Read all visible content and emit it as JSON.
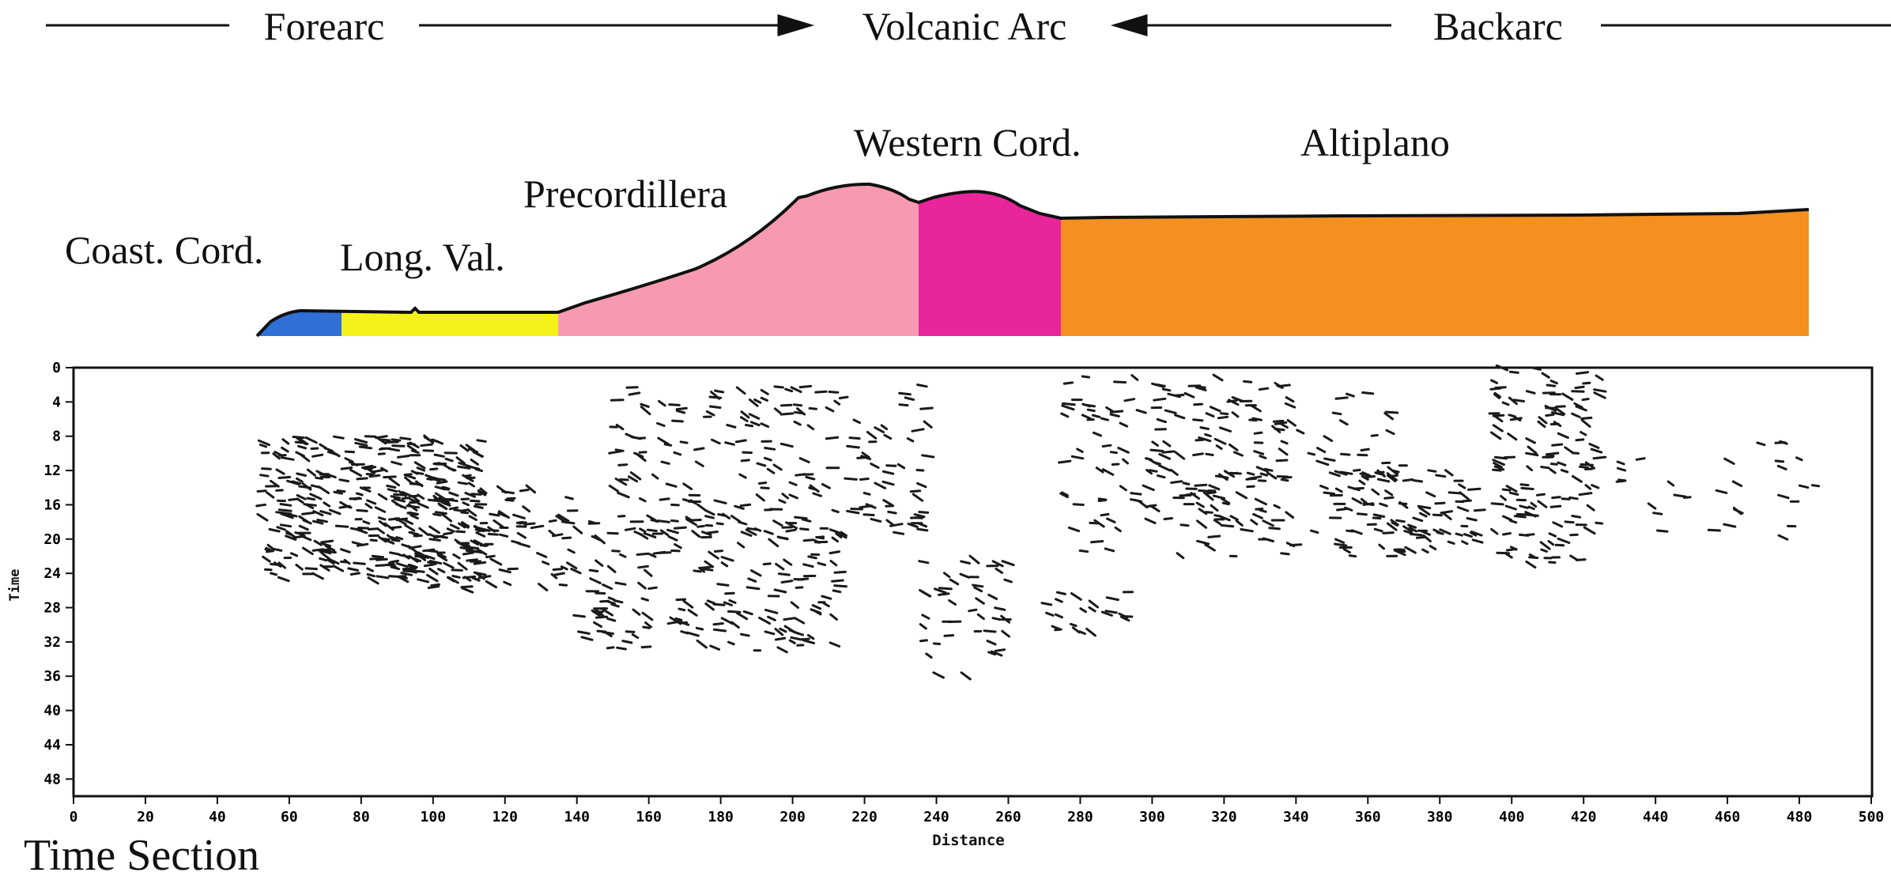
{
  "header": {
    "forearc": "Forearc",
    "volcanic_arc": "Volcanic Arc",
    "backarc": "Backarc"
  },
  "regions": [
    {
      "key": "coast",
      "label": "Coast. Cord.",
      "color": "#2f6fd6"
    },
    {
      "key": "longval",
      "label": "Long. Val.",
      "color": "#f5f21a"
    },
    {
      "key": "precord",
      "label": "Precordillera",
      "color": "#f79ab0"
    },
    {
      "key": "western",
      "label": "Western Cord.",
      "color": "#e8259a"
    },
    {
      "key": "altiplano",
      "label": "Altiplano",
      "color": "#f39020"
    }
  ],
  "section_title": "Time Section",
  "axes": {
    "xlabel": "Distance",
    "ylabel": "Time",
    "x_ticks": [
      "0",
      "20",
      "40",
      "60",
      "80",
      "100",
      "120",
      "140",
      "160",
      "180",
      "200",
      "220",
      "240",
      "260",
      "280",
      "300",
      "320",
      "340",
      "360",
      "380",
      "400",
      "420",
      "440",
      "460",
      "480",
      "500"
    ],
    "y_ticks": [
      "0",
      "4",
      "8",
      "12",
      "16",
      "20",
      "24",
      "28",
      "32",
      "36",
      "40",
      "44",
      "48"
    ],
    "xlim": [
      0,
      500
    ],
    "ylim": [
      0,
      50
    ]
  },
  "reflector_clusters": [
    {
      "x": [
        52,
        115
      ],
      "y": [
        8,
        25
      ],
      "n": 360
    },
    {
      "x": [
        85,
        140
      ],
      "y": [
        14,
        26
      ],
      "n": 120
    },
    {
      "x": [
        140,
        215
      ],
      "y": [
        18,
        33
      ],
      "n": 170
    },
    {
      "x": [
        150,
        240
      ],
      "y": [
        2,
        20
      ],
      "n": 210
    },
    {
      "x": [
        235,
        260
      ],
      "y": [
        22,
        36
      ],
      "n": 45
    },
    {
      "x": [
        270,
        295
      ],
      "y": [
        26,
        31
      ],
      "n": 22
    },
    {
      "x": [
        275,
        340
      ],
      "y": [
        1,
        22
      ],
      "n": 140
    },
    {
      "x": [
        300,
        370
      ],
      "y": [
        2,
        20
      ],
      "n": 100
    },
    {
      "x": [
        350,
        392
      ],
      "y": [
        12,
        22
      ],
      "n": 90
    },
    {
      "x": [
        395,
        425
      ],
      "y": [
        0,
        23
      ],
      "n": 140
    },
    {
      "x": [
        430,
        485
      ],
      "y": [
        8,
        20
      ],
      "n": 30
    }
  ]
}
